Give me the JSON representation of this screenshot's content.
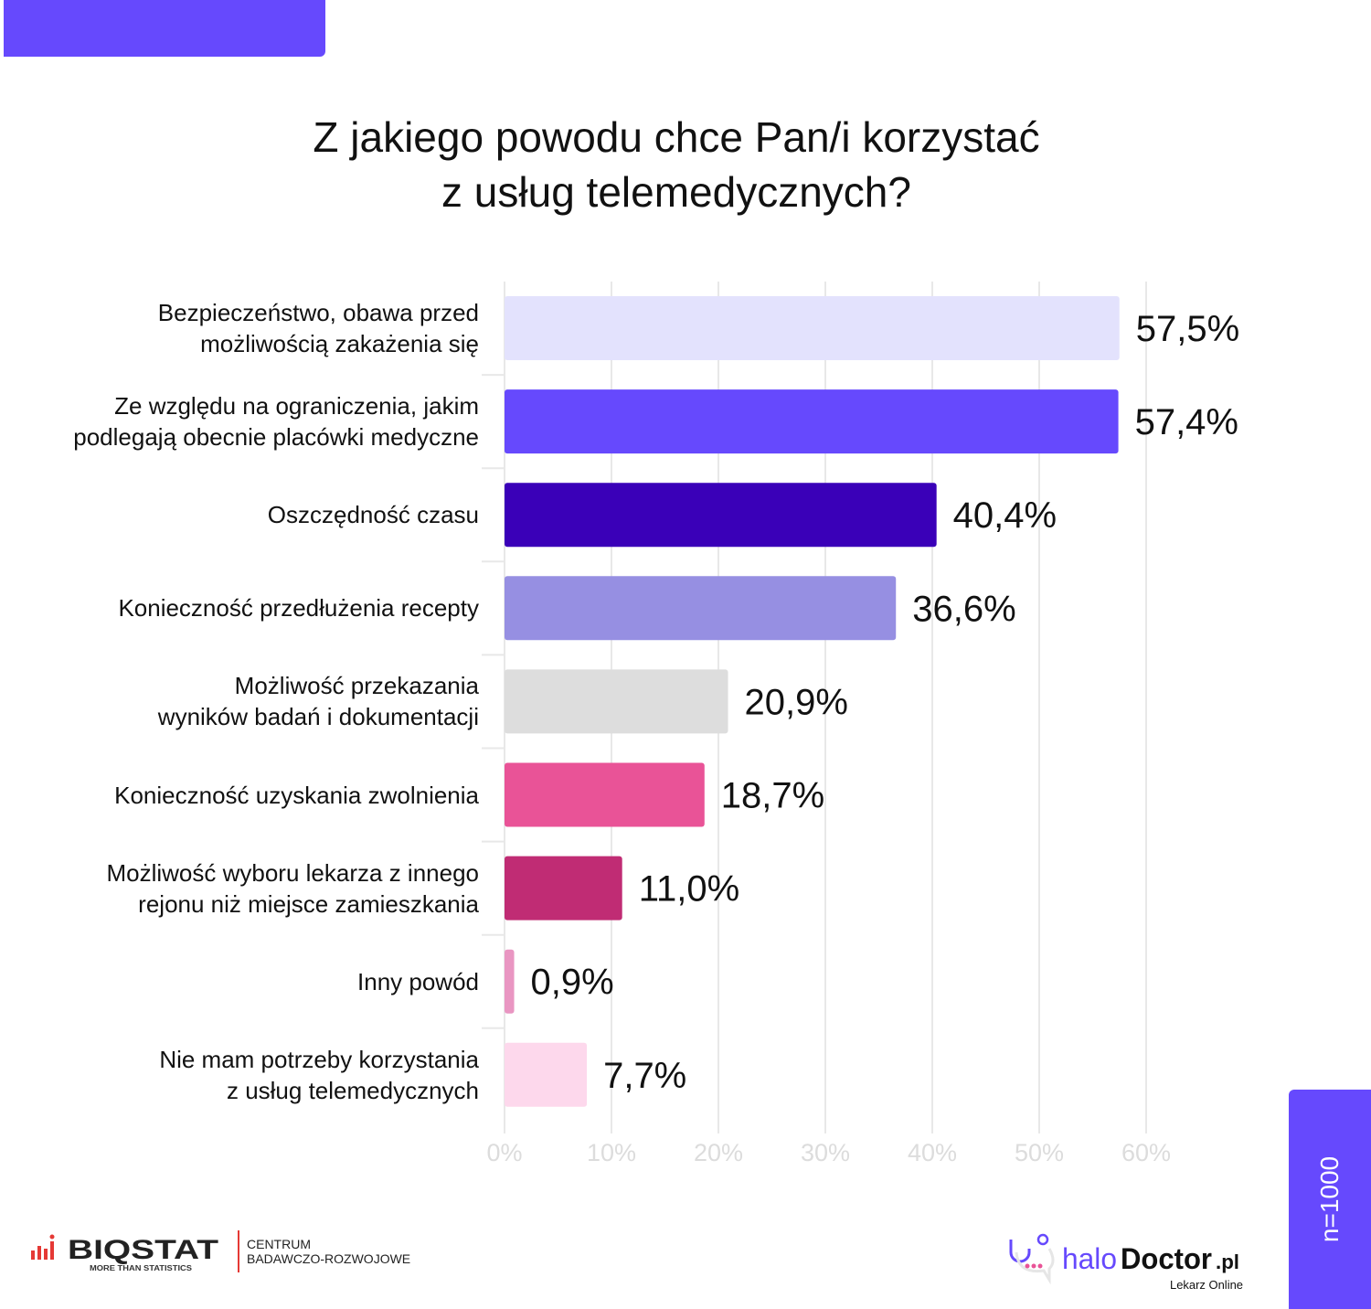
{
  "header": {
    "title_line1": "Z jakiego powodu chce Pan/i korzystać",
    "title_line2": "z usług telemedycznych?"
  },
  "chart_data": {
    "type": "bar",
    "orientation": "horizontal",
    "title": "Z jakiego powodu chce Pan/i korzystać z usług telemedycznych?",
    "categories": [
      [
        "Bezpieczeństwo, obawa przed",
        "możliwością zakażenia się"
      ],
      [
        "Ze względu na ograniczenia, jakim",
        "podlegają obecnie placówki medyczne"
      ],
      [
        "Oszczędność czasu"
      ],
      [
        "Konieczność przedłużenia recepty"
      ],
      [
        "Możliwość przekazania",
        "wyników badań i dokumentacji"
      ],
      [
        "Konieczność uzyskania zwolnienia"
      ],
      [
        "Możliwość wyboru lekarza z innego",
        "rejonu niż miejsce zamieszkania"
      ],
      [
        "Inny powód"
      ],
      [
        "Nie mam potrzeby korzystania",
        "z usług telemedycznych"
      ]
    ],
    "values": [
      57.5,
      57.4,
      40.4,
      36.6,
      20.9,
      18.7,
      11.0,
      0.9,
      7.7
    ],
    "value_labels": [
      "57,5%",
      "57,4%",
      "40,4%",
      "36,6%",
      "20,9%",
      "18,7%",
      "11,0%",
      "0,9%",
      "7,7%"
    ],
    "colors": [
      "#e3e2fd",
      "#6649fd",
      "#3a00b8",
      "#968fe2",
      "#dddddd",
      "#e95397",
      "#c02c74",
      "#e996c2",
      "#fdd8ec"
    ],
    "xlim": [
      0,
      60
    ],
    "ticks": [
      "0%",
      "10%",
      "20%",
      "30%",
      "40%",
      "50%",
      "60%"
    ],
    "grid": true
  },
  "footer": {
    "sample": "n=1000",
    "biostat": "BIQSTAT",
    "biostat_tag": "MORE THAN STATISTICS",
    "centrum1": "CENTRUM",
    "centrum2": "BADAWCZO-ROZWOJOWE",
    "halo": "halo",
    "doctor": "Doctor",
    "pl": ".pl",
    "lekarz": "Lekarz Online"
  }
}
